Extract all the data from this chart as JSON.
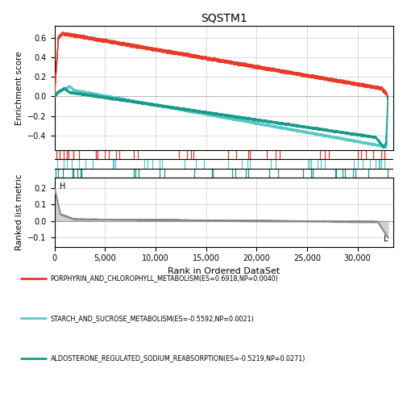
{
  "title": "SQSTM1",
  "xlabel": "Rank in Ordered DataSet",
  "ylabel_top": "Enrichment score",
  "ylabel_bottom": "Ranked list metric",
  "n_genes": 33000,
  "xlim": [
    0,
    33500
  ],
  "enrichment_ylim": [
    -0.55,
    0.72
  ],
  "ranked_ylim": [
    -0.155,
    0.26
  ],
  "enrichment_yticks": [
    -0.4,
    -0.2,
    0.0,
    0.2,
    0.4,
    0.6
  ],
  "ranked_yticks": [
    -0.1,
    0.0,
    0.1,
    0.2
  ],
  "xticks": [
    0,
    5000,
    10000,
    15000,
    20000,
    25000,
    30000
  ],
  "xticklabels": [
    "0",
    "5,000",
    "10,000",
    "15,000",
    "20,000",
    "25,000",
    "30,000"
  ],
  "color_red": "#E8392A",
  "color_cyan": "#5BC8C8",
  "color_teal": "#1A9B8A",
  "grid_color": "#cccccc",
  "legend": [
    {
      "label": "PORPHYRIN_AND_CHLOROPHYLL_METABOLISM(ES=0.6918,NP=0.0040)",
      "color": "#E8392A"
    },
    {
      "label": "STARCH_AND_SUCROSE_METABOLISM(ES=-0.5592,NP=0.0021)",
      "color": "#5BC8C8"
    },
    {
      "label": "ALDOSTERONE_REGULATED_SODIUM_REABSORPTION(ES=-0.5219,NP=0.0271)",
      "color": "#1A9B8A"
    }
  ],
  "background_color": "#ffffff",
  "H_label": "H",
  "L_label": "L"
}
